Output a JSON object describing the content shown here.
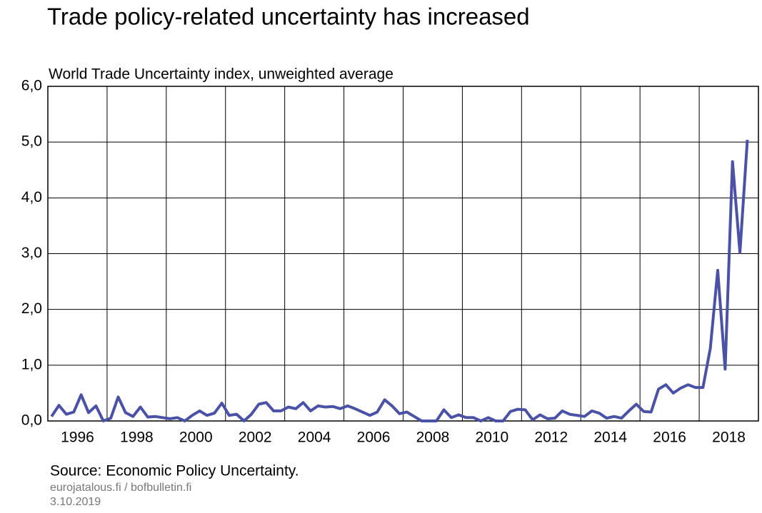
{
  "chart_data": {
    "type": "line",
    "title": "Trade policy-related uncertainty has increased",
    "subtitle": "World Trade Uncertainty index, unweighted average",
    "source": "Source: Economic Policy Uncertainty.",
    "credit": "eurojatalous.fi / bofbulletin.fi",
    "date": "3.10.2019",
    "xlim": [
      1996,
      2020
    ],
    "xticks": [
      1996,
      1998,
      2000,
      2002,
      2004,
      2006,
      2008,
      2010,
      2012,
      2014,
      2016,
      2018
    ],
    "ylim": [
      0,
      6
    ],
    "yticks": [
      {
        "value": 0,
        "label": "0,0"
      },
      {
        "value": 1,
        "label": "1,0"
      },
      {
        "value": 2,
        "label": "2,0"
      },
      {
        "value": 3,
        "label": "3,0"
      },
      {
        "value": 4,
        "label": "4,0"
      },
      {
        "value": 5,
        "label": "5,0"
      },
      {
        "value": 6,
        "label": "6,0"
      }
    ],
    "grid": true,
    "x": [
      1996.125,
      1996.375,
      1996.625,
      1996.875,
      1997.125,
      1997.375,
      1997.625,
      1997.875,
      1998.125,
      1998.375,
      1998.625,
      1998.875,
      1999.125,
      1999.375,
      1999.625,
      1999.875,
      2000.125,
      2000.375,
      2000.625,
      2000.875,
      2001.125,
      2001.375,
      2001.625,
      2001.875,
      2002.125,
      2002.375,
      2002.625,
      2002.875,
      2003.125,
      2003.375,
      2003.625,
      2003.875,
      2004.125,
      2004.375,
      2004.625,
      2004.875,
      2005.125,
      2005.375,
      2005.625,
      2005.875,
      2006.125,
      2006.375,
      2006.625,
      2006.875,
      2007.125,
      2007.375,
      2007.625,
      2007.875,
      2008.125,
      2008.375,
      2008.625,
      2008.875,
      2009.125,
      2009.375,
      2009.625,
      2009.875,
      2010.125,
      2010.375,
      2010.625,
      2010.875,
      2011.125,
      2011.375,
      2011.625,
      2011.875,
      2012.125,
      2012.375,
      2012.625,
      2012.875,
      2013.125,
      2013.375,
      2013.625,
      2013.875,
      2014.125,
      2014.375,
      2014.625,
      2014.875,
      2015.125,
      2015.375,
      2015.625,
      2015.875,
      2016.125,
      2016.375,
      2016.625,
      2016.875,
      2017.125,
      2017.375,
      2017.625,
      2017.875,
      2018.125,
      2018.375,
      2018.625,
      2018.875,
      2019.125,
      2019.375,
      2019.625
    ],
    "series": [
      {
        "name": "World Trade Uncertainty index",
        "color": "#4a52a8",
        "values": [
          0.08,
          0.28,
          0.12,
          0.16,
          0.47,
          0.15,
          0.27,
          0.0,
          0.05,
          0.43,
          0.15,
          0.08,
          0.25,
          0.07,
          0.08,
          0.06,
          0.04,
          0.06,
          0.0,
          0.1,
          0.18,
          0.1,
          0.14,
          0.32,
          0.1,
          0.12,
          0.0,
          0.12,
          0.3,
          0.33,
          0.18,
          0.18,
          0.25,
          0.22,
          0.33,
          0.18,
          0.27,
          0.25,
          0.26,
          0.22,
          0.27,
          0.22,
          0.16,
          0.1,
          0.16,
          0.38,
          0.27,
          0.13,
          0.16,
          0.08,
          0.0,
          0.0,
          0.0,
          0.2,
          0.06,
          0.11,
          0.06,
          0.06,
          0.0,
          0.06,
          0.0,
          0.0,
          0.17,
          0.21,
          0.2,
          0.02,
          0.11,
          0.04,
          0.05,
          0.18,
          0.12,
          0.1,
          0.08,
          0.18,
          0.14,
          0.05,
          0.08,
          0.05,
          0.18,
          0.3,
          0.17,
          0.16,
          0.57,
          0.65,
          0.5,
          0.59,
          0.65,
          0.6,
          0.6,
          1.3,
          2.7,
          0.93,
          4.65,
          3.02,
          5.04
        ]
      }
    ]
  }
}
